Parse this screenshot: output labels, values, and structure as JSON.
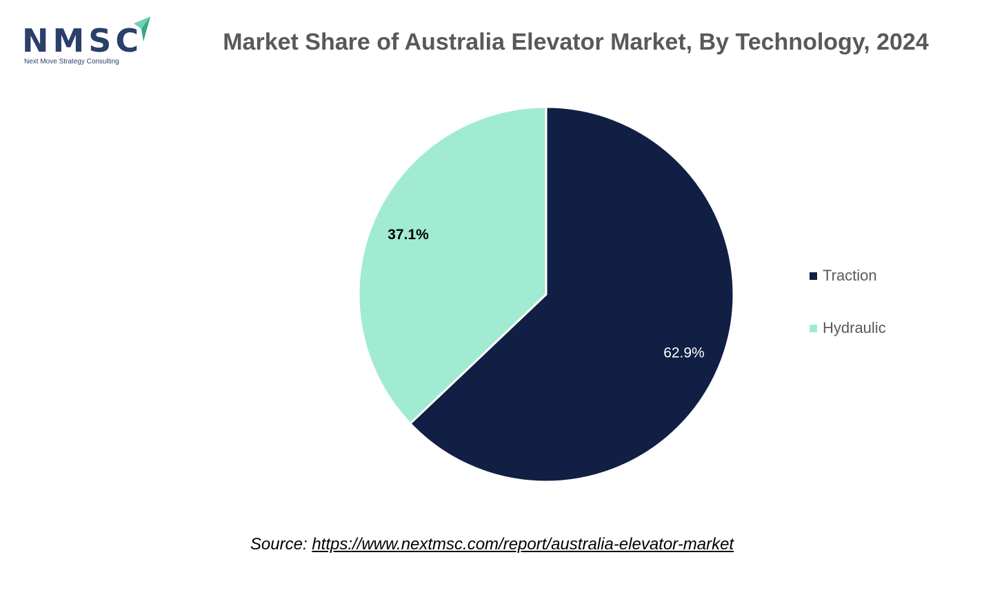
{
  "logo": {
    "name": "NMSC",
    "tagline": "Next Move Strategy Consulting",
    "color": "#2b3f6b",
    "accent_color": "#6fd3b0"
  },
  "chart_data": {
    "type": "pie",
    "title": "Market Share of Australia Elevator Market, By Technology, 2024",
    "categories": [
      "Traction",
      "Hydraulic"
    ],
    "values": [
      62.9,
      37.1
    ],
    "data_labels": [
      "62.9%",
      "37.1%"
    ],
    "colors": [
      "#111f44",
      "#a1ebd2"
    ],
    "label_colors": [
      "#ffffff",
      "#000000"
    ],
    "start_angle_deg": 0,
    "direction": "clockwise",
    "legend": {
      "position": "right",
      "entries": [
        "Traction",
        "Hydraulic"
      ]
    }
  },
  "source": {
    "prefix": "Source:",
    "link_text": "https://www.nextmsc.com/report/australia-elevator-market"
  }
}
